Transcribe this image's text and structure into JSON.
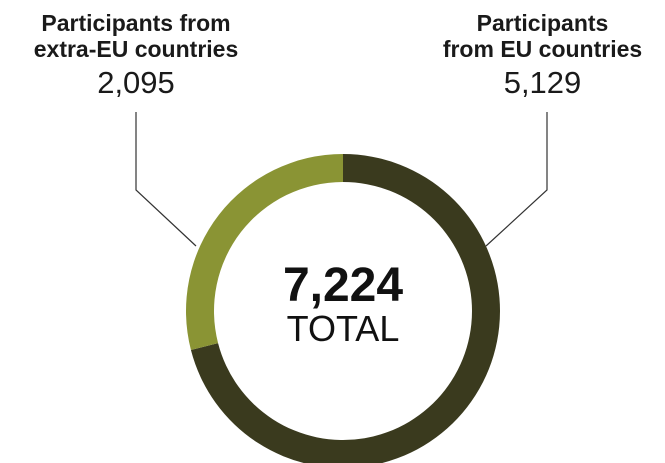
{
  "chart_data": {
    "type": "pie",
    "variant": "donut",
    "categories": [
      "Participants from EU countries",
      "Participants from extra-EU countries"
    ],
    "values": [
      5129,
      2095
    ],
    "colors": [
      "#3a3a1e",
      "#8a9434"
    ],
    "total": {
      "value": "7,224",
      "label": "TOTAL"
    },
    "labels": [
      {
        "lines": [
          "Participants",
          "from EU countries"
        ],
        "value": "5,129"
      },
      {
        "lines": [
          "Participants from",
          "extra-EU countries"
        ],
        "value": "2,095"
      }
    ]
  }
}
